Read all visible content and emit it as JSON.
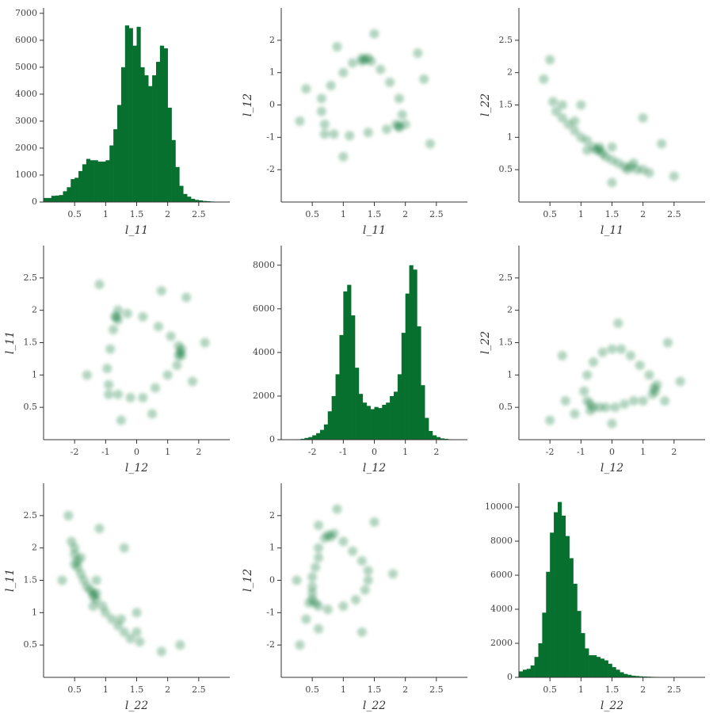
{
  "chart_data": [
    {
      "type": "histogram",
      "xlabel": "l_11",
      "color": "#08702e",
      "xlim": [
        0,
        3
      ],
      "ylim": [
        0,
        7200
      ],
      "xticks": [
        0.5,
        1,
        1.5,
        2,
        2.5
      ],
      "yticks": [
        0,
        1000,
        2000,
        3000,
        4000,
        5000,
        6000,
        7000
      ],
      "bins": [
        0,
        0.0625,
        0.125,
        0.1875,
        0.25,
        0.3125,
        0.375,
        0.4375,
        0.5,
        0.5625,
        0.625,
        0.6875,
        0.75,
        0.8125,
        0.875,
        0.9375,
        1,
        1.0625,
        1.125,
        1.1875,
        1.25,
        1.3125,
        1.375,
        1.4375,
        1.5,
        1.5625,
        1.625,
        1.6875,
        1.75,
        1.8125,
        1.875,
        1.9375,
        2,
        2.0625,
        2.125,
        2.1875,
        2.25,
        2.3125,
        2.375,
        2.4375,
        2.5,
        2.5625,
        2.625,
        2.6875,
        2.75,
        2.8125,
        2.875,
        2.9375,
        3
      ],
      "counts": [
        150,
        150,
        230,
        240,
        260,
        400,
        550,
        850,
        900,
        1150,
        1400,
        1600,
        1550,
        1550,
        1500,
        1500,
        1550,
        2100,
        2700,
        3600,
        5000,
        6550,
        6450,
        5800,
        6500,
        5000,
        4700,
        4300,
        4700,
        5200,
        5800,
        5700,
        3500,
        2300,
        1300,
        600,
        300,
        200,
        120,
        80,
        60,
        40,
        30,
        20,
        15,
        10,
        5,
        5
      ]
    },
    {
      "type": "scatter",
      "xlabel": "l_11",
      "ylabel": "l_12",
      "color": "#08702e",
      "xlim": [
        0,
        3
      ],
      "ylim": [
        -3,
        3
      ],
      "xticks": [
        0.5,
        1,
        1.5,
        2,
        2.5
      ],
      "yticks": [
        -2,
        -1,
        0,
        1,
        2
      ],
      "x": [
        0.8,
        1.0,
        1.15,
        1.35,
        1.45,
        1.6,
        1.75,
        1.9,
        1.95,
        1.9,
        1.7,
        1.4,
        1.1,
        0.85,
        0.7,
        0.65,
        0.65,
        0.7,
        1.3,
        1.4,
        1.3,
        1.85,
        2.0,
        1.9,
        0.4,
        0.3,
        2.3,
        2.4,
        1.5,
        1.0,
        2.2,
        0.9
      ],
      "y": [
        0.6,
        1.0,
        1.3,
        1.4,
        1.35,
        1.1,
        0.7,
        0.2,
        -0.3,
        -0.65,
        -0.75,
        -0.85,
        -0.95,
        -0.9,
        -0.6,
        -0.2,
        0.2,
        -0.9,
        1.45,
        1.45,
        1.35,
        -0.6,
        -0.6,
        -0.7,
        0.5,
        -0.5,
        0.8,
        -1.2,
        2.2,
        -1.6,
        1.6,
        1.8
      ]
    },
    {
      "type": "scatter",
      "xlabel": "l_11",
      "ylabel": "l_22",
      "color": "#08702e",
      "xlim": [
        0,
        3
      ],
      "ylim": [
        0,
        3
      ],
      "xticks": [
        0.5,
        1,
        1.5,
        2,
        2.5
      ],
      "yticks": [
        0.5,
        1,
        1.5,
        2,
        2.5
      ],
      "x": [
        0.55,
        0.6,
        0.7,
        0.8,
        0.9,
        1.0,
        1.1,
        1.2,
        1.3,
        1.35,
        1.4,
        1.5,
        1.6,
        1.7,
        1.8,
        1.9,
        2.0,
        1.25,
        1.3,
        1.75,
        1.85,
        0.7,
        0.9,
        1.1,
        1.5,
        2.1,
        0.4,
        0.5,
        1.0,
        2.3,
        2.0,
        1.5,
        2.5
      ],
      "y": [
        1.55,
        1.4,
        1.3,
        1.2,
        1.1,
        1.0,
        0.95,
        0.85,
        0.8,
        0.75,
        0.7,
        0.65,
        0.6,
        0.55,
        0.55,
        0.5,
        0.5,
        0.8,
        0.85,
        0.5,
        0.6,
        1.5,
        1.25,
        0.8,
        0.85,
        0.45,
        1.9,
        2.2,
        1.5,
        0.9,
        1.3,
        0.3,
        0.4
      ]
    },
    {
      "type": "scatter",
      "xlabel": "l_12",
      "ylabel": "l_11",
      "color": "#08702e",
      "xlim": [
        -3,
        3
      ],
      "ylim": [
        0,
        3
      ],
      "xticks": [
        -2,
        -1,
        0,
        1,
        2
      ],
      "yticks": [
        0.5,
        1,
        1.5,
        2,
        2.5
      ],
      "x": [
        0.6,
        1.0,
        1.3,
        1.4,
        1.35,
        1.1,
        0.7,
        0.2,
        -0.3,
        -0.65,
        -0.75,
        -0.85,
        -0.95,
        -0.9,
        -0.6,
        -0.2,
        0.2,
        -0.9,
        1.45,
        1.45,
        1.35,
        -0.6,
        -0.6,
        -0.7,
        0.5,
        -0.5,
        0.8,
        -1.2,
        2.2,
        -1.6,
        1.6,
        1.8
      ],
      "y": [
        0.8,
        1.0,
        1.15,
        1.35,
        1.45,
        1.6,
        1.75,
        1.9,
        1.95,
        1.9,
        1.7,
        1.4,
        1.1,
        0.85,
        0.7,
        0.65,
        0.65,
        0.7,
        1.3,
        1.4,
        1.3,
        1.85,
        2.0,
        1.9,
        0.4,
        0.3,
        2.3,
        2.4,
        1.5,
        1.0,
        2.2,
        0.9
      ]
    },
    {
      "type": "histogram",
      "xlabel": "l_12",
      "color": "#08702e",
      "xlim": [
        -3,
        3
      ],
      "ylim": [
        0,
        8900
      ],
      "xticks": [
        -2,
        -1,
        0,
        1,
        2
      ],
      "yticks": [
        0,
        2000,
        4000,
        6000,
        8000
      ],
      "bins": [
        -3,
        -2.875,
        -2.75,
        -2.625,
        -2.5,
        -2.375,
        -2.25,
        -2.125,
        -2,
        -1.875,
        -1.75,
        -1.625,
        -1.5,
        -1.375,
        -1.25,
        -1.125,
        -1,
        -0.875,
        -0.75,
        -0.625,
        -0.5,
        -0.375,
        -0.25,
        -0.125,
        0,
        0.125,
        0.25,
        0.375,
        0.5,
        0.625,
        0.75,
        0.875,
        1,
        1.125,
        1.25,
        1.375,
        1.5,
        1.625,
        1.75,
        1.875,
        2,
        2.125,
        2.25,
        2.375,
        2.5,
        2.625,
        2.75,
        2.875,
        3
      ],
      "counts": [
        0,
        0,
        5,
        10,
        20,
        40,
        80,
        120,
        200,
        300,
        450,
        700,
        1300,
        2000,
        3000,
        4800,
        6800,
        7100,
        5700,
        3300,
        2100,
        1700,
        1550,
        1400,
        1500,
        1450,
        1600,
        1700,
        2000,
        2200,
        3000,
        4900,
        6700,
        8000,
        7800,
        5200,
        2500,
        1000,
        400,
        200,
        120,
        60,
        40,
        20,
        10,
        5,
        0,
        0
      ]
    },
    {
      "type": "scatter",
      "xlabel": "l_12",
      "ylabel": "l_22",
      "color": "#08702e",
      "xlim": [
        -3,
        3
      ],
      "ylim": [
        0,
        3
      ],
      "xticks": [
        -2,
        -1,
        0,
        1,
        2
      ],
      "yticks": [
        0.5,
        1,
        1.5,
        2,
        2.5
      ],
      "x": [
        -0.7,
        -0.6,
        -0.8,
        -0.9,
        -0.8,
        -0.6,
        -0.3,
        0,
        0.3,
        0.6,
        0.9,
        1.2,
        1.35,
        1.4,
        1.3,
        1.0,
        0.7,
        0.4,
        0.1,
        -0.2,
        -0.4,
        -0.7,
        1.45,
        -1.5,
        -1.2,
        1.7,
        0.2,
        -1.6,
        1.8,
        -2.0,
        2.2,
        0
      ],
      "y": [
        0.55,
        0.5,
        0.6,
        0.75,
        1.0,
        1.2,
        1.35,
        1.4,
        1.4,
        1.3,
        1.15,
        1.0,
        0.8,
        0.75,
        0.7,
        0.6,
        0.6,
        0.55,
        0.5,
        0.5,
        0.5,
        0.45,
        0.85,
        0.6,
        0.4,
        0.6,
        1.8,
        1.3,
        1.5,
        0.3,
        0.9,
        0.25
      ]
    },
    {
      "type": "scatter",
      "xlabel": "l_22",
      "ylabel": "l_11",
      "color": "#08702e",
      "xlim": [
        0,
        3
      ],
      "ylim": [
        0,
        3
      ],
      "xticks": [
        0.5,
        1,
        1.5,
        2,
        2.5
      ],
      "yticks": [
        0.5,
        1,
        1.5,
        2,
        2.5
      ],
      "x": [
        1.55,
        1.4,
        1.3,
        1.2,
        1.1,
        1.0,
        0.95,
        0.85,
        0.8,
        0.75,
        0.7,
        0.65,
        0.6,
        0.55,
        0.55,
        0.5,
        0.5,
        0.8,
        0.85,
        0.5,
        0.6,
        1.5,
        1.25,
        0.8,
        0.85,
        0.45,
        1.9,
        2.2,
        1.5,
        0.9,
        1.3,
        0.3,
        0.4
      ],
      "y": [
        0.55,
        0.6,
        0.7,
        0.8,
        0.9,
        1.0,
        1.1,
        1.2,
        1.3,
        1.35,
        1.4,
        1.5,
        1.6,
        1.7,
        1.8,
        1.9,
        2.0,
        1.25,
        1.3,
        1.75,
        1.85,
        0.7,
        0.9,
        1.1,
        1.5,
        2.1,
        0.4,
        0.5,
        1.0,
        2.3,
        2.0,
        1.5,
        2.5
      ]
    },
    {
      "type": "scatter",
      "xlabel": "l_22",
      "ylabel": "l_12",
      "color": "#08702e",
      "xlim": [
        0,
        3
      ],
      "ylim": [
        -3,
        3
      ],
      "xticks": [
        0.5,
        1,
        1.5,
        2,
        2.5
      ],
      "yticks": [
        -2,
        -1,
        0,
        1,
        2
      ],
      "x": [
        0.55,
        0.5,
        0.6,
        0.75,
        1.0,
        1.2,
        1.35,
        1.4,
        1.4,
        1.3,
        1.15,
        1.0,
        0.8,
        0.75,
        0.7,
        0.6,
        0.6,
        0.55,
        0.5,
        0.5,
        0.5,
        0.45,
        0.85,
        0.6,
        0.4,
        0.6,
        1.8,
        1.3,
        1.5,
        0.3,
        0.9,
        0.25
      ],
      "y": [
        -0.7,
        -0.6,
        -0.8,
        -0.9,
        -0.8,
        -0.6,
        -0.3,
        0,
        0.3,
        0.6,
        0.9,
        1.2,
        1.35,
        1.4,
        1.3,
        1.0,
        0.7,
        0.4,
        0.1,
        -0.2,
        -0.4,
        -0.7,
        1.45,
        -1.5,
        -1.2,
        1.7,
        0.2,
        -1.6,
        1.8,
        -2.0,
        2.2,
        0
      ]
    },
    {
      "type": "histogram",
      "xlabel": "l_22",
      "color": "#08702e",
      "xlim": [
        0,
        3
      ],
      "ylim": [
        0,
        11400
      ],
      "xticks": [
        0.5,
        1,
        1.5,
        2,
        2.5
      ],
      "yticks": [
        0,
        2000,
        4000,
        6000,
        8000,
        10000
      ],
      "bins": [
        0,
        0.0625,
        0.125,
        0.1875,
        0.25,
        0.3125,
        0.375,
        0.4375,
        0.5,
        0.5625,
        0.625,
        0.6875,
        0.75,
        0.8125,
        0.875,
        0.9375,
        1,
        1.0625,
        1.125,
        1.1875,
        1.25,
        1.3125,
        1.375,
        1.4375,
        1.5,
        1.5625,
        1.625,
        1.6875,
        1.75,
        1.8125,
        1.875,
        1.9375,
        2,
        2.0625,
        2.125,
        2.1875,
        2.25,
        2.3125,
        2.375,
        2.4375,
        2.5,
        2.5625,
        2.625,
        2.6875,
        2.75,
        2.8125,
        2.875,
        2.9375,
        3
      ],
      "counts": [
        350,
        450,
        500,
        700,
        1200,
        2000,
        3800,
        6200,
        8500,
        9700,
        10300,
        9500,
        8300,
        7000,
        5500,
        3900,
        2600,
        1700,
        1300,
        1300,
        1200,
        1100,
        1000,
        800,
        600,
        450,
        300,
        200,
        150,
        100,
        80,
        60,
        50,
        40,
        30,
        25,
        20,
        15,
        10,
        10,
        5,
        5,
        5,
        0,
        0,
        0,
        0,
        0
      ]
    }
  ]
}
